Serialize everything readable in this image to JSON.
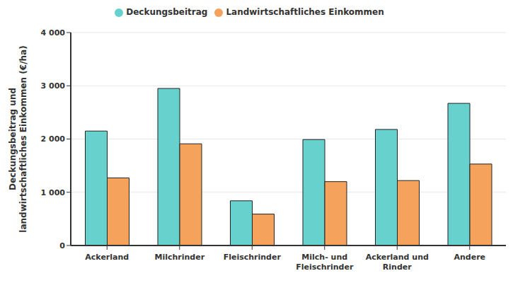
{
  "chart_data": {
    "type": "bar",
    "y_label": "Deckungsbeitrag und landwirtschaftliches Einkommen (€/ha)",
    "categories": [
      "Ackerland",
      "Milchrinder",
      "Fleischrinder",
      "Milch- und Fleischrinder",
      "Ackerland und Rinder",
      "Andere"
    ],
    "series": [
      {
        "name": "Deckungsbeitrag",
        "color": "#66d1cd",
        "values": [
          2150,
          2950,
          840,
          1990,
          2180,
          2670
        ]
      },
      {
        "name": "Landwirtschaftliches Einkommen",
        "color": "#f5a35c",
        "values": [
          1270,
          1910,
          590,
          1200,
          1220,
          1530
        ]
      }
    ],
    "ylim": [
      0,
      4000
    ],
    "yticks": [
      0,
      {
        "value": 1000,
        "label": "1 000"
      },
      {
        "value": 2000,
        "label": "2 000"
      },
      {
        "value": 3000,
        "label": "3 000"
      },
      {
        "value": 4000,
        "label": "4 000"
      }
    ],
    "grid": true,
    "legend": "top"
  }
}
